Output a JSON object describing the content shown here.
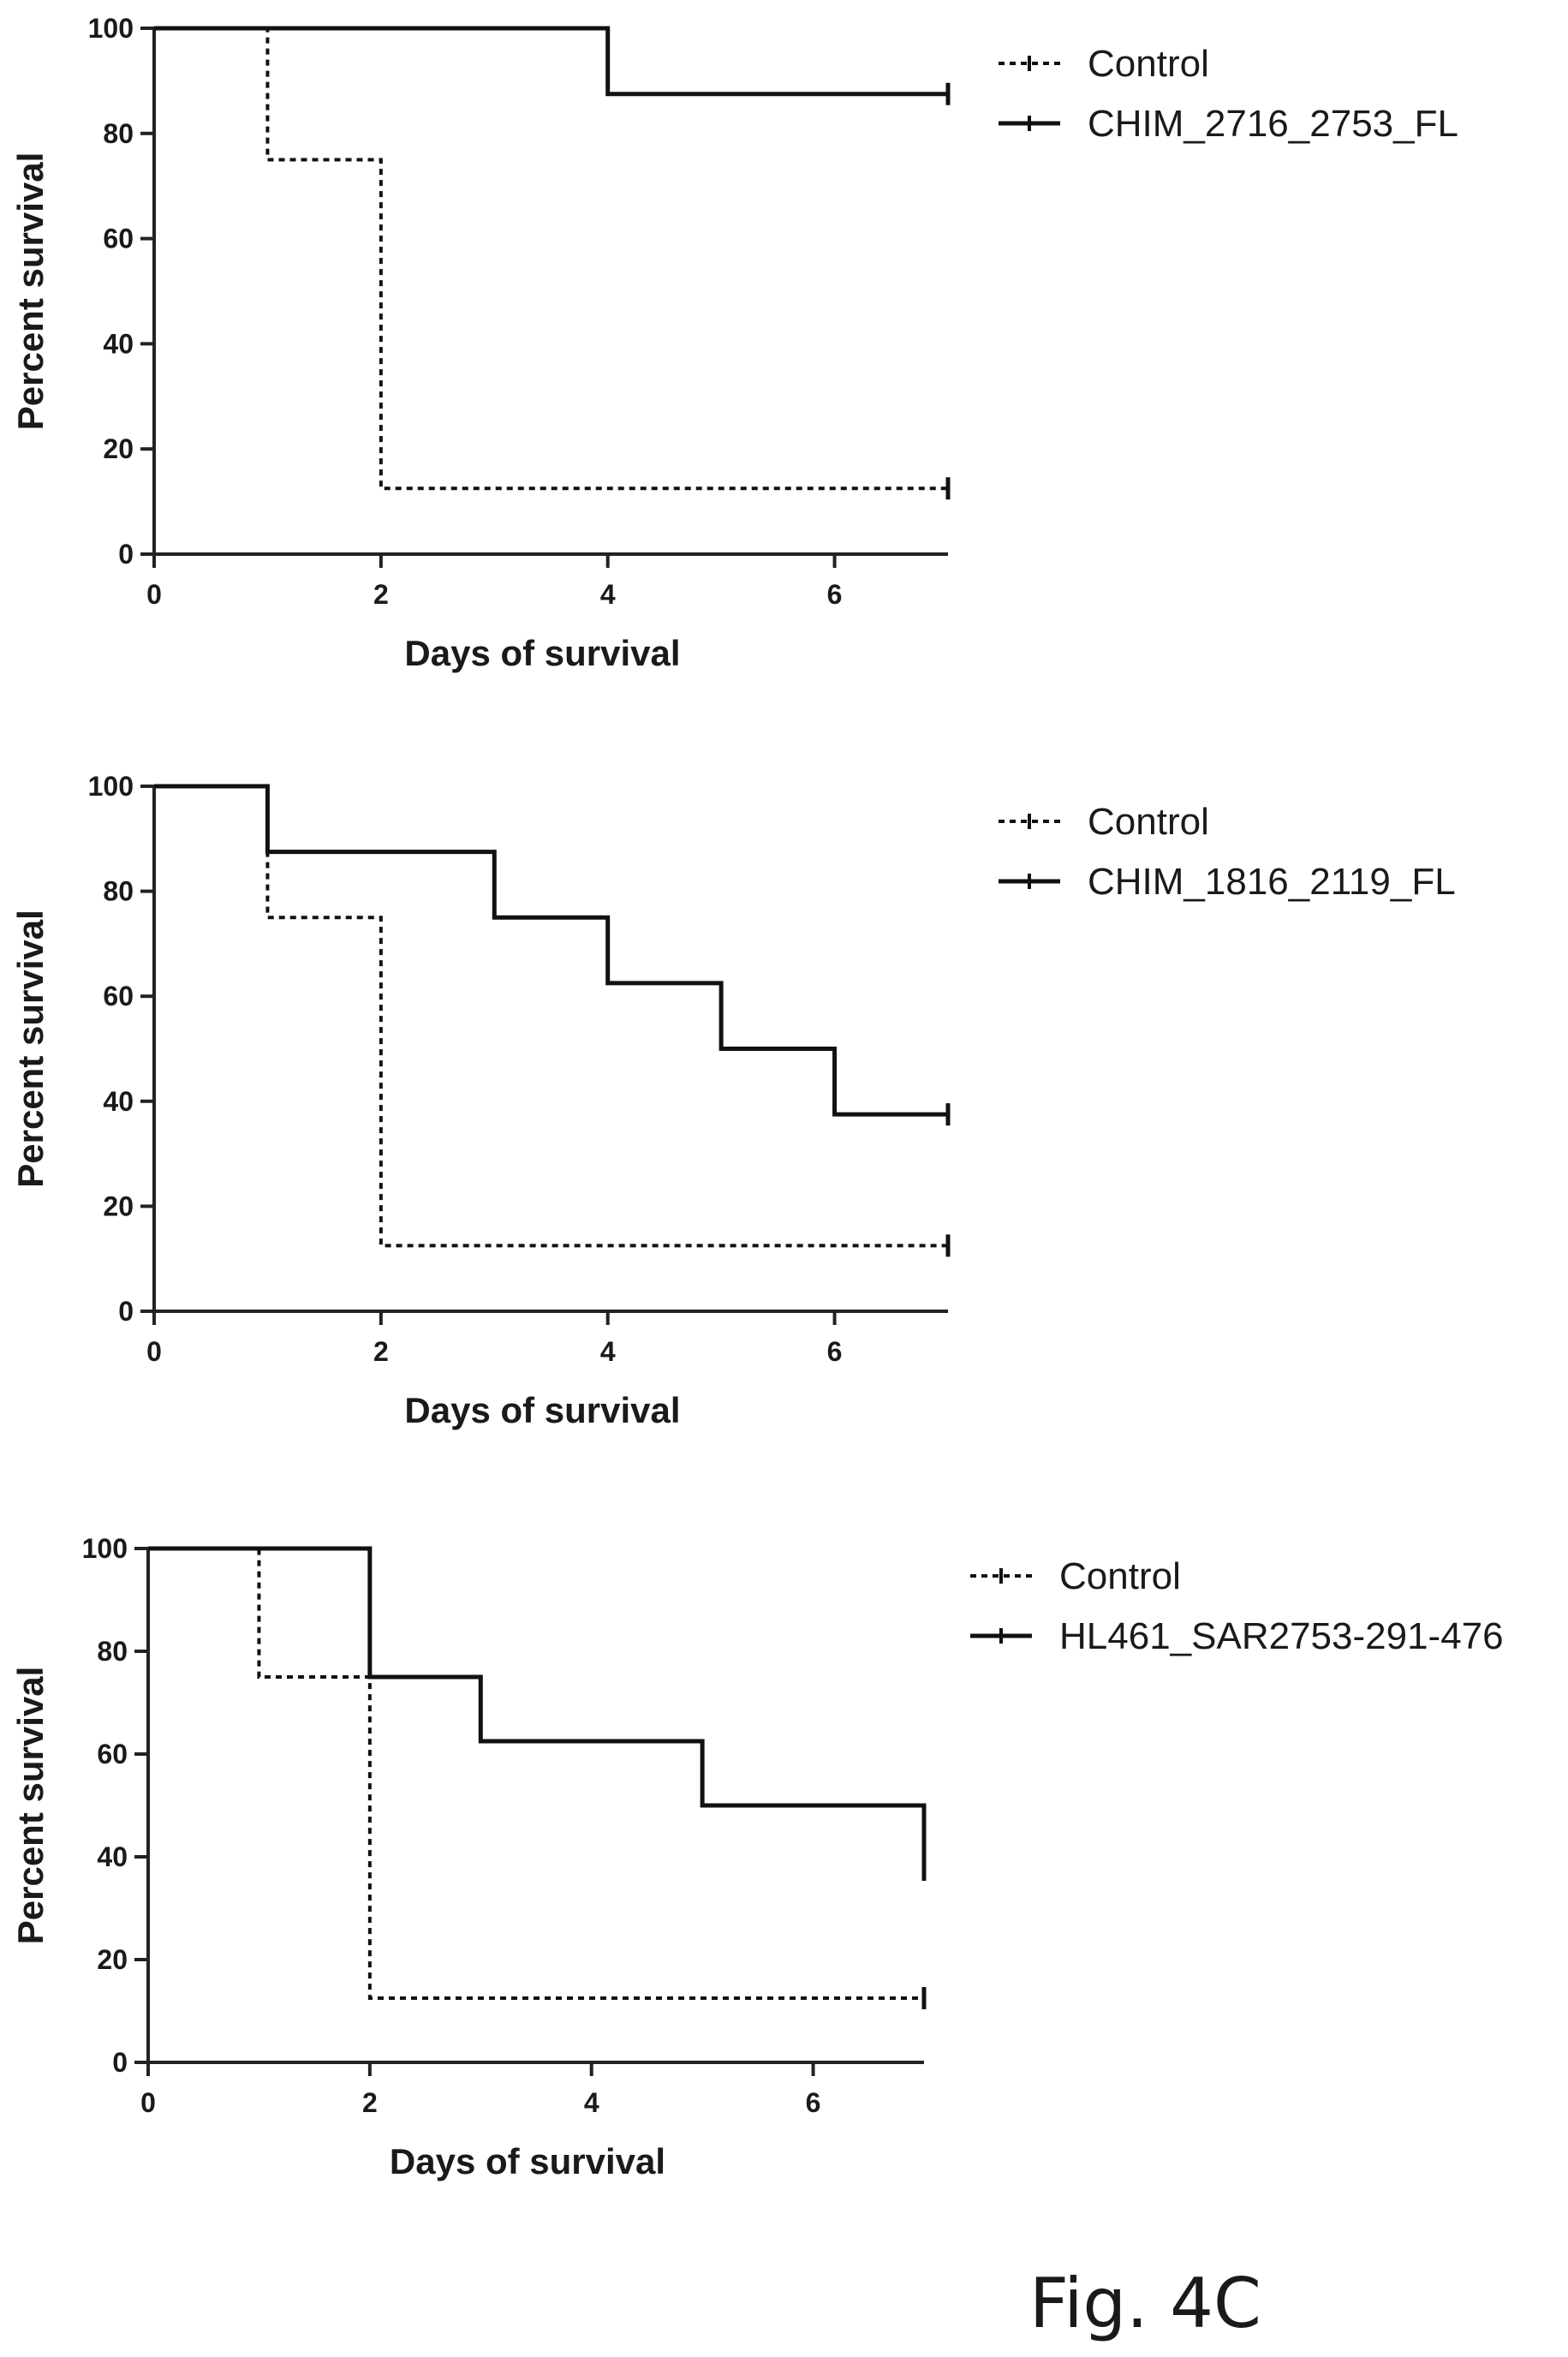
{
  "figure_label": "Fig. 4C",
  "chart_data": [
    {
      "type": "line",
      "step": true,
      "xlabel": "Days of survival",
      "ylabel": "Percent survival",
      "xlim": [
        0,
        7
      ],
      "ylim": [
        0,
        100
      ],
      "x_ticks": [
        0,
        2,
        4,
        6
      ],
      "y_ticks": [
        0,
        20,
        40,
        60,
        80,
        100
      ],
      "grid": false,
      "legend_position": "top-right",
      "series": [
        {
          "name": "Control",
          "style": "dotted",
          "x": [
            0,
            1,
            2,
            7
          ],
          "y": [
            100,
            75,
            12.5,
            12.5
          ]
        },
        {
          "name": "CHIM_2716_2753_FL",
          "style": "solid",
          "x": [
            0,
            4,
            7
          ],
          "y": [
            100,
            87.5,
            87.5
          ]
        }
      ]
    },
    {
      "type": "line",
      "step": true,
      "xlabel": "Days of survival",
      "ylabel": "Percent survival",
      "xlim": [
        0,
        7
      ],
      "ylim": [
        0,
        100
      ],
      "x_ticks": [
        0,
        2,
        4,
        6
      ],
      "y_ticks": [
        0,
        20,
        40,
        60,
        80,
        100
      ],
      "grid": false,
      "legend_position": "top-right",
      "series": [
        {
          "name": "Control",
          "style": "dotted",
          "x": [
            0,
            1,
            2,
            7
          ],
          "y": [
            100,
            75,
            12.5,
            12.5
          ]
        },
        {
          "name": "CHIM_1816_2119_FL",
          "style": "solid",
          "x": [
            0,
            1,
            3,
            4,
            5,
            6,
            7
          ],
          "y": [
            100,
            87.5,
            75,
            62.5,
            50,
            37.5,
            37.5
          ]
        }
      ]
    },
    {
      "type": "line",
      "step": true,
      "xlabel": "Days of survival",
      "ylabel": "Percent survival",
      "xlim": [
        0,
        7
      ],
      "ylim": [
        0,
        100
      ],
      "x_ticks": [
        0,
        2,
        4,
        6
      ],
      "y_ticks": [
        0,
        20,
        40,
        60,
        80,
        100
      ],
      "grid": false,
      "legend_position": "top-right",
      "series": [
        {
          "name": "Control",
          "style": "dotted",
          "x": [
            0,
            1,
            2,
            7
          ],
          "y": [
            100,
            75,
            12.5,
            12.5
          ]
        },
        {
          "name": "HL461_SAR2753-291-476",
          "style": "solid",
          "x": [
            0,
            2,
            3,
            5,
            7
          ],
          "y": [
            100,
            75,
            62.5,
            50,
            37.5
          ]
        }
      ]
    }
  ]
}
